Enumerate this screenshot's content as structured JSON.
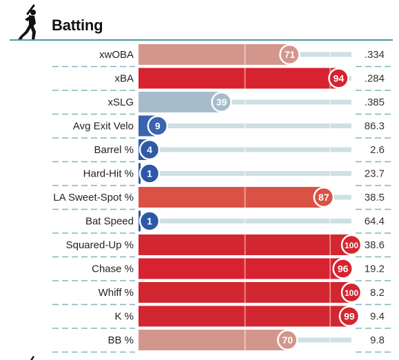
{
  "header": {
    "title": "Batting",
    "icon": "batter-silhouette-icon"
  },
  "colors": {
    "accent_rule": "#4e9aa1",
    "track": "#cfe0e3",
    "divider": "#7fb5bb",
    "scale_low_strong": "#2e5aa8",
    "scale_low_mid": "#a3bccb",
    "scale_high_mid": "#d3968c",
    "scale_high_strong": "#d22630"
  },
  "chart_data": {
    "type": "bar",
    "title": "Batting",
    "xlim": [
      0,
      100
    ],
    "categories": [
      "xwOBA",
      "xBA",
      "xSLG",
      "Avg Exit Velo",
      "Barrel %",
      "Hard-Hit %",
      "LA Sweet-Spot %",
      "Bat Speed",
      "Squared-Up %",
      "Chase %",
      "Whiff %",
      "K %",
      "BB %"
    ],
    "series": [
      {
        "values": [
          71,
          94,
          39,
          9,
          4,
          1,
          87,
          1,
          100,
          96,
          100,
          99,
          70
        ]
      }
    ],
    "stat_values": [
      ".334",
      ".284",
      ".385",
      "86.3",
      "2.6",
      "23.7",
      "38.5",
      "64.4",
      "38.6",
      "19.2",
      "8.2",
      "9.4",
      "9.8"
    ],
    "bar_colors": [
      "#d3968c",
      "#d7222f",
      "#a7bccb",
      "#3a63b0",
      "#2e5aa8",
      "#2c58a6",
      "#da5246",
      "#2c58a6",
      "#d22630",
      "#d7222f",
      "#d22630",
      "#d22630",
      "#d3968c"
    ]
  }
}
